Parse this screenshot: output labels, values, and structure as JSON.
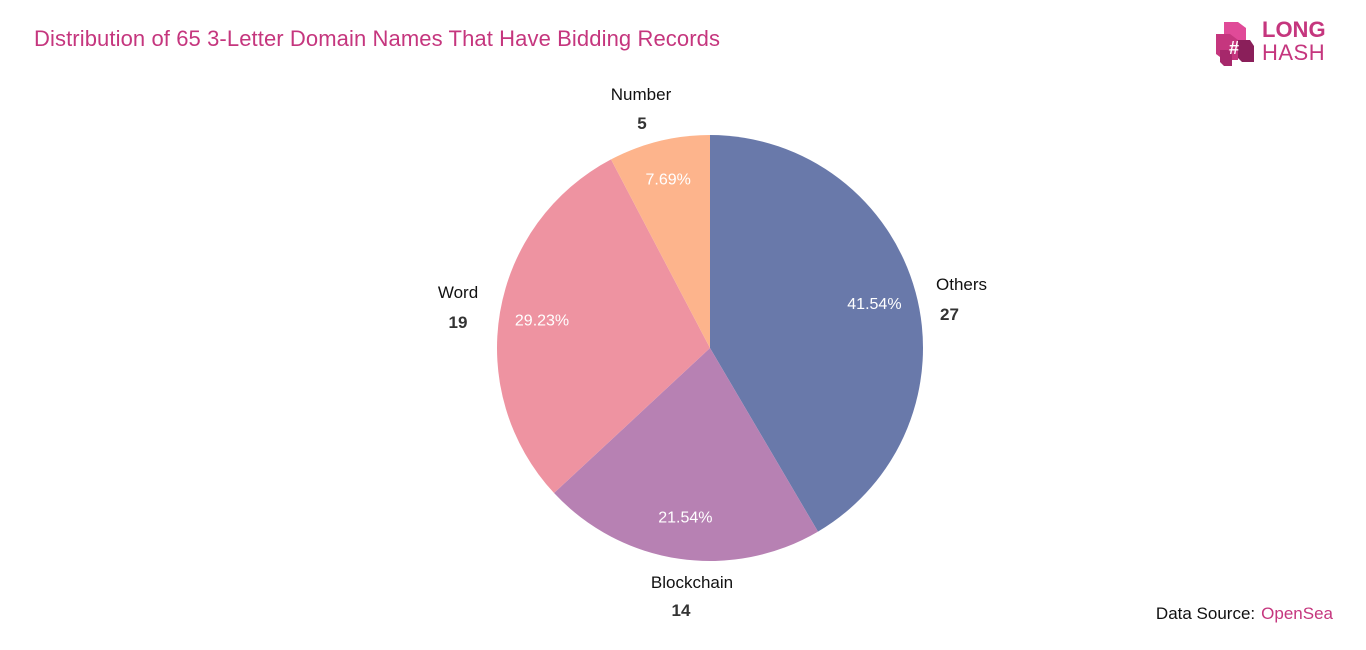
{
  "header": {
    "title": "Distribution of 65 3-Letter Domain Names That Have Bidding Records"
  },
  "logo": {
    "line1": "LONG",
    "line2": "HASH",
    "icon": "cube-hash-icon",
    "color": "#c5367e"
  },
  "footer": {
    "source_label": "Data Source:",
    "source_value": "OpenSea"
  },
  "chart_data": {
    "type": "pie",
    "title": "Distribution of 65 3-Letter Domain Names That Have Bidding Records",
    "slices": [
      {
        "label": "Others",
        "value": 27,
        "percent": "41.54%",
        "color": "#6979aa"
      },
      {
        "label": "Blockchain",
        "value": 14,
        "percent": "21.54%",
        "color": "#b781b3"
      },
      {
        "label": "Word",
        "value": 19,
        "percent": "29.23%",
        "color": "#ee93a1"
      },
      {
        "label": "Number",
        "value": 5,
        "percent": "7.69%",
        "color": "#fdb48c"
      }
    ]
  }
}
